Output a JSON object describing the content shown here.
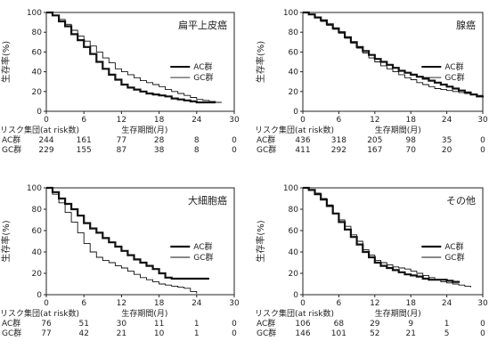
{
  "figure": {
    "ylabel": "生存率(%)",
    "risk_header": "リスク集団(at risk数)",
    "xlabel": "生存期間(月)"
  },
  "chart_data": [
    {
      "type": "line",
      "title": "扁平上皮癌",
      "xlim": [
        0,
        30
      ],
      "ylim": [
        0,
        100
      ],
      "xticks": [
        0,
        6,
        12,
        18,
        24,
        30
      ],
      "yticks": [
        0,
        20,
        40,
        60,
        80,
        100
      ],
      "legend_position": "right",
      "series": [
        {
          "name": "AC群",
          "style": "thick",
          "x": [
            0,
            1,
            2,
            3,
            4,
            5,
            6,
            7,
            8,
            9,
            10,
            11,
            12,
            13,
            14,
            15,
            16,
            17,
            18,
            19,
            20,
            21,
            22,
            23,
            24,
            25,
            26,
            27
          ],
          "y": [
            100,
            97,
            91,
            86,
            78,
            72,
            65,
            58,
            50,
            43,
            37,
            32,
            27,
            24,
            22,
            20,
            18,
            17,
            16,
            15,
            13,
            12,
            11,
            10,
            9,
            9,
            9,
            9
          ]
        },
        {
          "name": "GC群",
          "style": "thin",
          "x": [
            0,
            1,
            2,
            3,
            4,
            5,
            6,
            7,
            8,
            9,
            10,
            11,
            12,
            13,
            14,
            15,
            16,
            17,
            18,
            19,
            20,
            21,
            22,
            23,
            24,
            25,
            26,
            27,
            28
          ],
          "y": [
            100,
            97,
            93,
            88,
            82,
            76,
            71,
            66,
            60,
            54,
            49,
            43,
            40,
            37,
            34,
            31,
            29,
            27,
            25,
            22,
            20,
            18,
            16,
            14,
            12,
            11,
            10,
            9,
            9
          ]
        }
      ],
      "at_risk": {
        "x": [
          0,
          6,
          12,
          18,
          24,
          30
        ],
        "rows": [
          {
            "group": "AC群",
            "values": [
              "244",
              "161",
              "77",
              "28",
              "8",
              "0"
            ]
          },
          {
            "group": "GC群",
            "values": [
              "229",
              "155",
              "87",
              "38",
              "8",
              "0"
            ]
          }
        ]
      }
    },
    {
      "type": "line",
      "title": "腺癌",
      "xlim": [
        0,
        30
      ],
      "ylim": [
        0,
        100
      ],
      "xticks": [
        0,
        6,
        12,
        18,
        24,
        30
      ],
      "yticks": [
        0,
        20,
        40,
        60,
        80,
        100
      ],
      "legend_position": "right",
      "series": [
        {
          "name": "AC群",
          "style": "thick",
          "x": [
            0,
            1,
            2,
            3,
            4,
            5,
            6,
            7,
            8,
            9,
            10,
            11,
            12,
            13,
            14,
            15,
            16,
            17,
            18,
            19,
            20,
            21,
            22,
            23,
            24,
            25,
            26,
            27,
            28,
            29,
            30
          ],
          "y": [
            100,
            98,
            95,
            92,
            88,
            84,
            80,
            75,
            70,
            65,
            61,
            57,
            53,
            50,
            47,
            44,
            41,
            39,
            37,
            35,
            33,
            31,
            29,
            27,
            25,
            23,
            21,
            19,
            17,
            15,
            14
          ]
        },
        {
          "name": "GC群",
          "style": "thin",
          "x": [
            0,
            1,
            2,
            3,
            4,
            5,
            6,
            7,
            8,
            9,
            10,
            11,
            12,
            13,
            14,
            15,
            16,
            17,
            18,
            19,
            20,
            21,
            22,
            23,
            24,
            25,
            26,
            27,
            28,
            29,
            30
          ],
          "y": [
            100,
            98,
            95,
            91,
            87,
            83,
            79,
            74,
            69,
            64,
            59,
            54,
            50,
            46,
            43,
            40,
            37,
            34,
            32,
            29,
            27,
            25,
            23,
            22,
            21,
            20,
            19,
            18,
            17,
            16,
            16
          ]
        }
      ],
      "at_risk": {
        "x": [
          0,
          6,
          12,
          18,
          24,
          30
        ],
        "rows": [
          {
            "group": "AC群",
            "values": [
              "436",
              "318",
              "205",
              "98",
              "35",
              "0"
            ]
          },
          {
            "group": "GC群",
            "values": [
              "411",
              "292",
              "167",
              "70",
              "20",
              "0"
            ]
          }
        ]
      }
    },
    {
      "type": "line",
      "title": "大細胞癌",
      "xlim": [
        0,
        30
      ],
      "ylim": [
        0,
        100
      ],
      "xticks": [
        0,
        6,
        12,
        18,
        24,
        30
      ],
      "yticks": [
        0,
        20,
        40,
        60,
        80,
        100
      ],
      "legend_position": "right",
      "series": [
        {
          "name": "AC群",
          "style": "thick",
          "x": [
            0,
            1,
            2,
            3,
            4,
            5,
            6,
            7,
            8,
            9,
            10,
            11,
            12,
            13,
            14,
            15,
            16,
            17,
            18,
            19,
            20,
            21,
            22,
            23,
            24,
            25,
            26
          ],
          "y": [
            100,
            96,
            90,
            85,
            80,
            74,
            67,
            62,
            58,
            53,
            49,
            45,
            41,
            37,
            33,
            30,
            27,
            24,
            20,
            16,
            15,
            15,
            15,
            15,
            15,
            15,
            15
          ]
        },
        {
          "name": "GC群",
          "style": "thin",
          "x": [
            0,
            1,
            2,
            3,
            4,
            5,
            6,
            7,
            8,
            9,
            10,
            11,
            12,
            13,
            14,
            15,
            16,
            17,
            18,
            19,
            20,
            21,
            22,
            23,
            24
          ],
          "y": [
            100,
            94,
            86,
            77,
            68,
            58,
            48,
            40,
            35,
            32,
            30,
            27,
            25,
            22,
            19,
            16,
            14,
            12,
            10,
            9,
            8,
            7,
            6,
            3,
            1
          ]
        }
      ],
      "at_risk": {
        "x": [
          0,
          6,
          12,
          18,
          24,
          30
        ],
        "rows": [
          {
            "group": "AC群",
            "values": [
              "76",
              "51",
              "30",
              "11",
              "1",
              "0"
            ]
          },
          {
            "group": "GC群",
            "values": [
              "77",
              "42",
              "21",
              "10",
              "1",
              "0"
            ]
          }
        ]
      }
    },
    {
      "type": "line",
      "title": "その他",
      "xlim": [
        0,
        30
      ],
      "ylim": [
        0,
        100
      ],
      "xticks": [
        0,
        6,
        12,
        18,
        24,
        30
      ],
      "yticks": [
        0,
        20,
        40,
        60,
        80,
        100
      ],
      "legend_position": "right",
      "series": [
        {
          "name": "AC群",
          "style": "thick",
          "x": [
            0,
            1,
            2,
            3,
            4,
            5,
            6,
            7,
            8,
            9,
            10,
            11,
            12,
            13,
            14,
            15,
            16,
            17,
            18,
            19,
            20,
            21,
            22,
            23,
            24,
            25,
            26
          ],
          "y": [
            100,
            98,
            94,
            89,
            83,
            76,
            68,
            61,
            54,
            47,
            40,
            35,
            30,
            27,
            25,
            23,
            21,
            19,
            18,
            17,
            15,
            14,
            14,
            14,
            13,
            12,
            11
          ]
        },
        {
          "name": "GC群",
          "style": "thin",
          "x": [
            0,
            1,
            2,
            3,
            4,
            5,
            6,
            7,
            8,
            9,
            10,
            11,
            12,
            13,
            14,
            15,
            16,
            17,
            18,
            19,
            20,
            21,
            22,
            23,
            24,
            25,
            26,
            27,
            28
          ],
          "y": [
            100,
            98,
            95,
            90,
            84,
            76,
            70,
            64,
            56,
            50,
            42,
            37,
            32,
            30,
            28,
            26,
            25,
            24,
            22,
            20,
            18,
            16,
            14,
            12,
            11,
            10,
            9,
            8,
            7
          ]
        }
      ],
      "at_risk": {
        "x": [
          0,
          6,
          12,
          18,
          24,
          30
        ],
        "rows": [
          {
            "group": "AC群",
            "values": [
              "106",
              "68",
              "29",
              "9",
              "1",
              "0"
            ]
          },
          {
            "group": "GC群",
            "values": [
              "146",
              "101",
              "52",
              "21",
              "5",
              "0"
            ]
          }
        ]
      }
    }
  ]
}
